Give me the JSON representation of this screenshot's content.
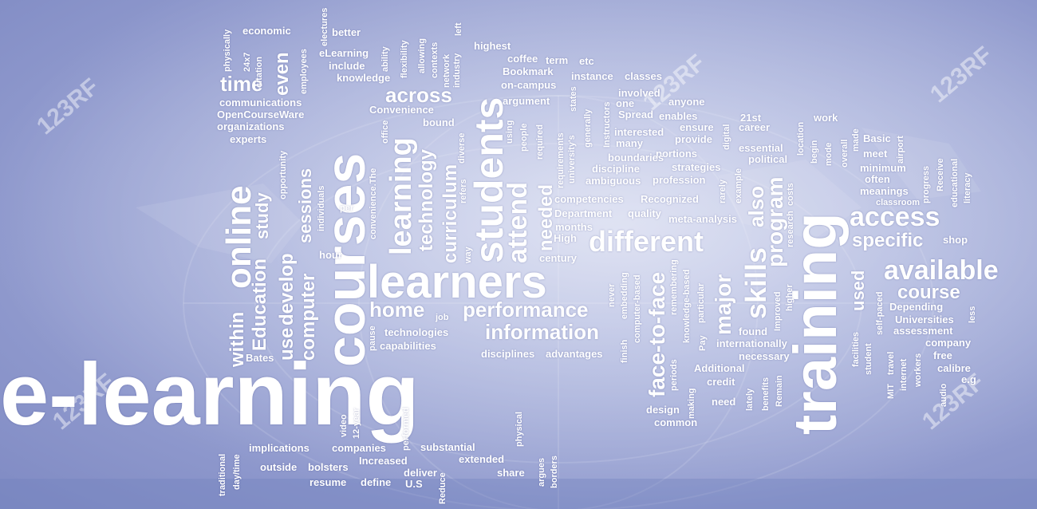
{
  "watermark_text": "123RF",
  "colors": {
    "background": "#9aa3d6",
    "text": "#ffffff"
  },
  "words": {
    "e_learning": "e-learning",
    "training": "training",
    "courses": "courses",
    "learners": "learners",
    "students": "students",
    "online": "online",
    "different": "different",
    "access": "access",
    "available": "available",
    "learning": "learning",
    "information": "information",
    "performance": "performance",
    "skills": "skills",
    "attend": "attend",
    "face_to_face": "face-to-face",
    "across": "across",
    "home": "home",
    "course": "course",
    "specific": "specific",
    "major": "major",
    "program": "program",
    "also": "also",
    "time": "time",
    "even": "even",
    "computer": "computer",
    "use": "use",
    "develop": "develop",
    "education": "Education",
    "study": "study",
    "within": "within",
    "sessions": "sessions",
    "technology": "technology",
    "curriculum": "curriculum",
    "needed": "needed",
    "used": "used",
    "economic": "economic",
    "better": "better",
    "physically": "physically",
    "x24": "24x7",
    "citation": "citation",
    "employees": "employees",
    "electures": "electures",
    "elearning": "eLearning",
    "include": "include",
    "knowledge": "knowledge",
    "ability": "ability",
    "flexibility": "flexibility",
    "allowing": "allowing",
    "contexts": "contexts",
    "network": "network",
    "industry": "industry",
    "left": "left",
    "highest": "highest",
    "coffee": "coffee",
    "term": "term",
    "etc": "etc",
    "bookmark": "Bookmark",
    "on_campus": "on-campus",
    "instance": "instance",
    "classes": "classes",
    "communications": "communications",
    "opencourseware": "OpenCourseWare",
    "organizations": "organizations",
    "experts": "experts",
    "convenience": "Convenience",
    "bound": "bound",
    "argument": "argument",
    "involved": "involved",
    "one": "one",
    "anyone": "anyone",
    "instructors": "Instructors",
    "spread": "Spread",
    "enables": "enables",
    "work": "work",
    "st21": "21st",
    "career": "career",
    "ensure": "ensure",
    "provide": "provide",
    "interested": "interested",
    "many": "many",
    "portions": "portions",
    "boundaries": "boundaries",
    "discipline": "discipline",
    "ambiguous": "ambiguous",
    "strategies": "strategies",
    "profession": "profession",
    "essential": "essential",
    "political": "political",
    "basic": "Basic",
    "meet": "meet",
    "minimum": "minimum",
    "often": "often",
    "meanings": "meanings",
    "classroom": "classroom",
    "competencies": "competencies",
    "recognized": "Recognized",
    "department": "Department",
    "quality": "quality",
    "meta_analysis": "meta-analysis",
    "months": "months",
    "high": "High",
    "century": "century",
    "shop": "shop",
    "depending": "Depending",
    "universities": "Universities",
    "assessment": "assessment",
    "company": "company",
    "free": "free",
    "calibre": "calibre",
    "eg": "e.g",
    "per": "per",
    "hour": "hour",
    "way": "way",
    "bates": "Bates",
    "technologies": "technologies",
    "capabilities": "capabilities",
    "pause": "pause",
    "job": "job",
    "disciplines": "disciplines",
    "advantages": "advantages",
    "found": "found",
    "internationally": "internationally",
    "necessary": "necessary",
    "additional": "Additional",
    "credit": "credit",
    "need": "need",
    "design": "design",
    "common": "common",
    "implications": "implications",
    "companies": "companies",
    "substantial": "substantial",
    "extended": "extended",
    "increased": "Increased",
    "outside": "outside",
    "bolsters": "bolsters",
    "resume": "resume",
    "define": "define",
    "deliver": "deliver",
    "share": "share",
    "us": "U.S",
    "traditional": "traditional",
    "day_time": "day/time",
    "video": "video",
    "year12": "12-year",
    "performed": "performed",
    "reduce": "Reduce",
    "physical": "physical",
    "argues": "argues",
    "borders": "borders",
    "opportunity": "opportunity",
    "individuals": "individuals",
    "convenience_the": "convenience.The",
    "office": "office",
    "refers": "refers",
    "diverse": "diverse",
    "using": "using",
    "people": "people",
    "required": "required",
    "requirements": "requirements",
    "universitys": "university's",
    "states": "states",
    "generally": "generally",
    "digital": "digital",
    "rarely": "rarely",
    "example": "example",
    "research": "research",
    "costs": "costs",
    "location": "location",
    "begin": "begin",
    "mode": "mode",
    "overall": "overall",
    "made": "made",
    "airport": "airport",
    "progress": "progress",
    "receive": "Receive",
    "educational": "educational",
    "literacy": "literacy",
    "never": "never",
    "embedding": "embedding",
    "computer_based": "computer-based",
    "finish": "finish",
    "remembering": "remembering",
    "knowledge_based": "knowledge-based",
    "periods": "periods",
    "making": "making",
    "particular": "particular",
    "pay": "Pay",
    "improved": "Improved",
    "higher": "higher",
    "lately": "lately",
    "benefits": "benefits",
    "remain": "Remain",
    "facilities": "facilities",
    "student": "student",
    "self_paced": "self-paced",
    "mit": "MIT",
    "travel": "travel",
    "internet": "internet",
    "workers": "workers",
    "audio": "audio",
    "less": "less"
  }
}
